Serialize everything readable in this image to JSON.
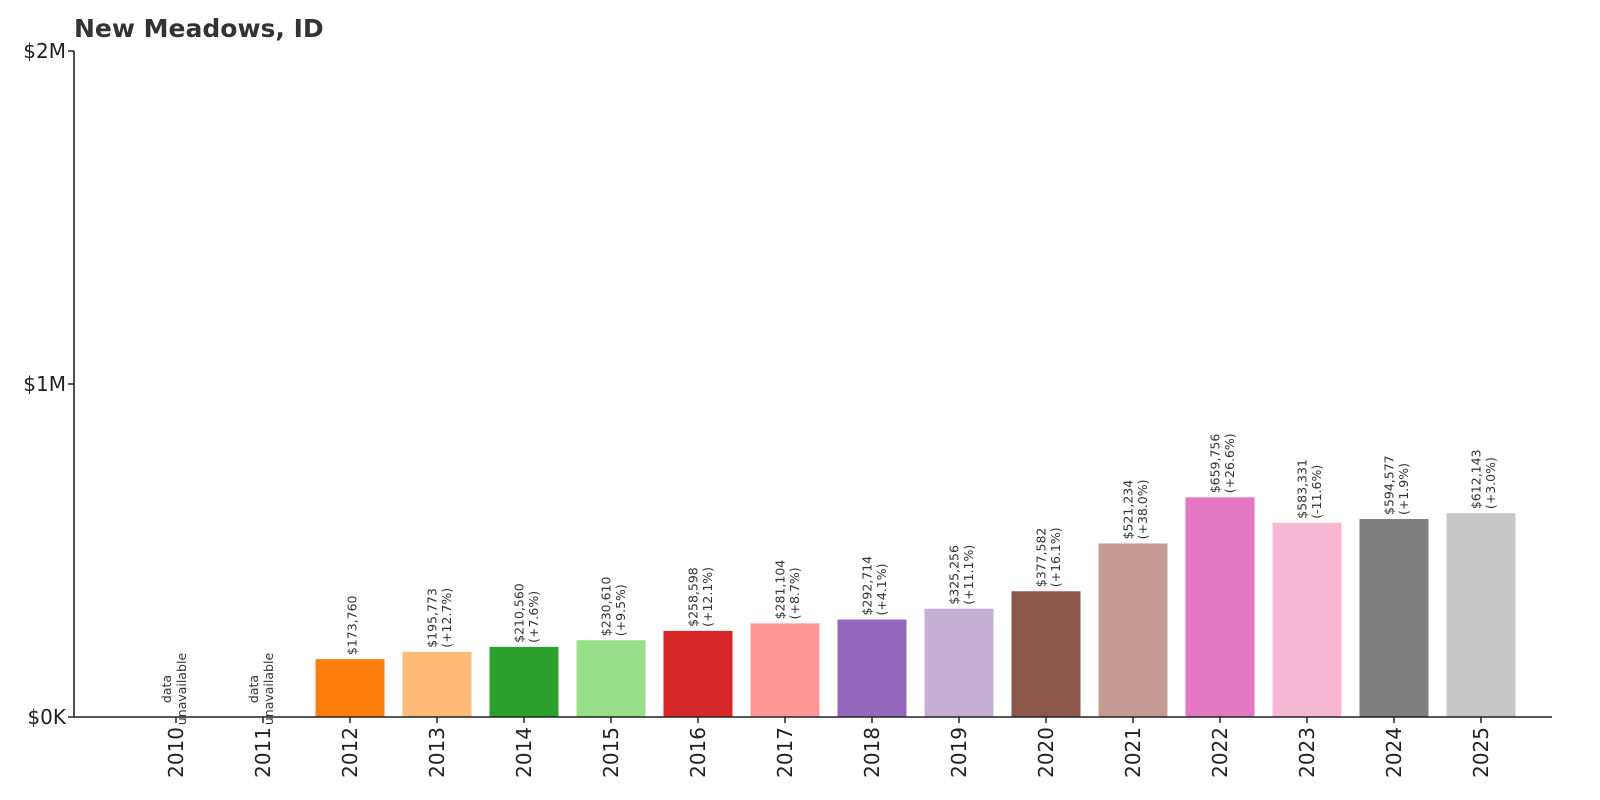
{
  "chart_data": {
    "type": "bar",
    "title": "New Meadows, ID",
    "xlabel": "",
    "ylabel": "",
    "ylim": [
      0,
      2000000
    ],
    "yticks": [
      {
        "value": 0,
        "label": "$0K"
      },
      {
        "value": 1000000,
        "label": "$1M"
      },
      {
        "value": 2000000,
        "label": "$2M"
      }
    ],
    "grid": false,
    "legend": "none",
    "categories": [
      "2010",
      "2011",
      "2012",
      "2013",
      "2014",
      "2015",
      "2016",
      "2017",
      "2018",
      "2019",
      "2020",
      "2021",
      "2022",
      "2023",
      "2024",
      "2025"
    ],
    "values": [
      null,
      null,
      173760,
      195773,
      210560,
      230610,
      258598,
      281104,
      292714,
      325256,
      377582,
      521234,
      659756,
      583331,
      594577,
      612143
    ],
    "value_labels": [
      "",
      "",
      "$173,760",
      "$195,773",
      "$210,560",
      "$230,610",
      "$258,598",
      "$281,104",
      "$292,714",
      "$325,256",
      "$377,582",
      "$521,234",
      "$659,756",
      "$583,331",
      "$594,577",
      "$612,143"
    ],
    "change_labels": [
      "",
      "",
      "",
      "(+12.7%)",
      "(+7.6%)",
      "(+9.5%)",
      "(+12.1%)",
      "(+8.7%)",
      "(+4.1%)",
      "(+11.1%)",
      "(+16.1%)",
      "(+38.0%)",
      "(+26.6%)",
      "(-11.6%)",
      "(+1.9%)",
      "(+3.0%)"
    ],
    "missing_label_lines": [
      "data",
      "unavailable"
    ],
    "colors": [
      "#1f77b4",
      "#aec7e8",
      "#ff7f0e",
      "#ffbb78",
      "#2ca02c",
      "#98df8a",
      "#d62728",
      "#ff9896",
      "#9467bd",
      "#c5b0d5",
      "#8c564b",
      "#c49c94",
      "#e377c2",
      "#f7b6d2",
      "#7f7f7f",
      "#c7c7c7"
    ]
  }
}
